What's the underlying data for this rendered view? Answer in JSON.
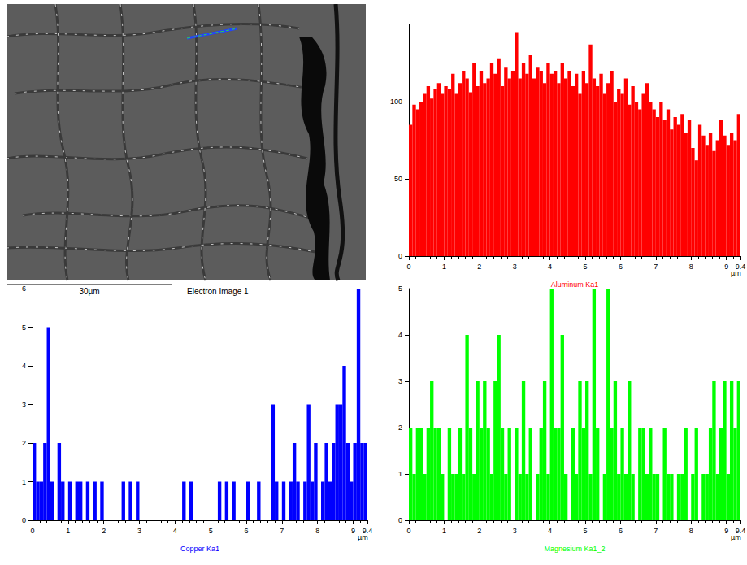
{
  "electron_image": {
    "label": "Electron Image 1",
    "scale_bar": "30µm"
  },
  "chart_data": [
    {
      "type": "bar",
      "title": "Aluminum Ka1",
      "xlabel": "µm",
      "color": "#ff0000",
      "grid": false,
      "xlim": [
        0,
        9.4
      ],
      "xticks": [
        0,
        1,
        2,
        3,
        4,
        5,
        6,
        7,
        8,
        9
      ],
      "ylim": [
        0,
        150
      ],
      "yticks": [
        0,
        50,
        100
      ],
      "x": [
        0.05,
        0.15,
        0.25,
        0.35,
        0.45,
        0.55,
        0.65,
        0.75,
        0.85,
        0.95,
        1.05,
        1.15,
        1.25,
        1.35,
        1.45,
        1.55,
        1.65,
        1.75,
        1.85,
        1.95,
        2.05,
        2.15,
        2.25,
        2.35,
        2.45,
        2.55,
        2.65,
        2.75,
        2.85,
        2.95,
        3.05,
        3.15,
        3.25,
        3.35,
        3.45,
        3.55,
        3.65,
        3.75,
        3.85,
        3.95,
        4.05,
        4.15,
        4.25,
        4.35,
        4.45,
        4.55,
        4.65,
        4.75,
        4.85,
        4.95,
        5.05,
        5.15,
        5.25,
        5.35,
        5.45,
        5.55,
        5.65,
        5.75,
        5.85,
        5.95,
        6.05,
        6.15,
        6.25,
        6.35,
        6.45,
        6.55,
        6.65,
        6.75,
        6.85,
        6.95,
        7.05,
        7.15,
        7.25,
        7.35,
        7.45,
        7.55,
        7.65,
        7.75,
        7.85,
        7.95,
        8.05,
        8.15,
        8.25,
        8.35,
        8.45,
        8.55,
        8.65,
        8.75,
        8.85,
        8.95,
        9.05,
        9.15,
        9.25,
        9.35
      ],
      "values": [
        85,
        98,
        95,
        100,
        105,
        110,
        102,
        108,
        112,
        105,
        110,
        108,
        118,
        105,
        112,
        120,
        115,
        106,
        125,
        110,
        120,
        112,
        115,
        125,
        118,
        128,
        110,
        122,
        115,
        120,
        145,
        115,
        125,
        118,
        130,
        115,
        122,
        120,
        112,
        125,
        118,
        120,
        112,
        125,
        115,
        120,
        110,
        118,
        105,
        120,
        112,
        137,
        115,
        110,
        118,
        105,
        112,
        120,
        100,
        108,
        105,
        115,
        98,
        110,
        100,
        95,
        105,
        112,
        100,
        95,
        90,
        100,
        88,
        95,
        82,
        90,
        85,
        92,
        80,
        88,
        70,
        62,
        85,
        78,
        72,
        80,
        68,
        75,
        88,
        78,
        72,
        80,
        75,
        92
      ]
    },
    {
      "type": "bar",
      "title": "Copper Ka1",
      "xlabel": "µm",
      "color": "#0000ff",
      "grid": false,
      "xlim": [
        0,
        9.4
      ],
      "xticks": [
        0,
        1,
        2,
        3,
        4,
        5,
        6,
        7,
        8,
        9
      ],
      "ylim": [
        0,
        6
      ],
      "yticks": [
        0,
        1,
        2,
        3,
        4,
        5,
        6
      ],
      "x": [
        0.05,
        0.15,
        0.25,
        0.35,
        0.45,
        0.55,
        0.65,
        0.75,
        0.85,
        0.95,
        1.05,
        1.15,
        1.25,
        1.35,
        1.45,
        1.55,
        1.65,
        1.75,
        1.85,
        1.95,
        2.05,
        2.15,
        2.25,
        2.35,
        2.45,
        2.55,
        2.65,
        2.75,
        2.85,
        2.95,
        3.05,
        3.15,
        3.25,
        3.35,
        3.45,
        3.55,
        3.65,
        3.75,
        3.85,
        3.95,
        4.05,
        4.15,
        4.25,
        4.35,
        4.45,
        4.55,
        4.65,
        4.75,
        4.85,
        4.95,
        5.05,
        5.15,
        5.25,
        5.35,
        5.45,
        5.55,
        5.65,
        5.75,
        5.85,
        5.95,
        6.05,
        6.15,
        6.25,
        6.35,
        6.45,
        6.55,
        6.65,
        6.75,
        6.85,
        6.95,
        7.05,
        7.15,
        7.25,
        7.35,
        7.45,
        7.55,
        7.65,
        7.75,
        7.85,
        7.95,
        8.05,
        8.15,
        8.25,
        8.35,
        8.45,
        8.55,
        8.65,
        8.75,
        8.85,
        8.95,
        9.05,
        9.15,
        9.25,
        9.35
      ],
      "values": [
        2,
        1,
        1,
        2,
        5,
        1,
        0,
        2,
        1,
        0,
        1,
        0,
        1,
        1,
        0,
        1,
        0,
        1,
        0,
        1,
        0,
        0,
        0,
        0,
        0,
        1,
        0,
        1,
        0,
        1,
        0,
        0,
        0,
        0,
        0,
        0,
        0,
        0,
        0,
        0,
        0,
        0,
        1,
        0,
        1,
        0,
        0,
        0,
        0,
        0,
        0,
        0,
        1,
        0,
        1,
        0,
        1,
        0,
        0,
        0,
        1,
        0,
        0,
        1,
        0,
        0,
        0,
        3,
        1,
        0,
        1,
        0,
        1,
        2,
        1,
        0,
        1,
        3,
        1,
        2,
        0,
        1,
        2,
        1,
        2,
        3,
        3,
        4,
        2,
        1,
        2,
        6,
        2,
        2
      ]
    },
    {
      "type": "bar",
      "title": "Magnesium Ka1_2",
      "xlabel": "µm",
      "color": "#00ff00",
      "grid": false,
      "xlim": [
        0,
        9.4
      ],
      "xticks": [
        0,
        1,
        2,
        3,
        4,
        5,
        6,
        7,
        8,
        9
      ],
      "ylim": [
        0,
        5
      ],
      "yticks": [
        0,
        1,
        2,
        3,
        4,
        5
      ],
      "x": [
        0.05,
        0.15,
        0.25,
        0.35,
        0.45,
        0.55,
        0.65,
        0.75,
        0.85,
        0.95,
        1.05,
        1.15,
        1.25,
        1.35,
        1.45,
        1.55,
        1.65,
        1.75,
        1.85,
        1.95,
        2.05,
        2.15,
        2.25,
        2.35,
        2.45,
        2.55,
        2.65,
        2.75,
        2.85,
        2.95,
        3.05,
        3.15,
        3.25,
        3.35,
        3.45,
        3.55,
        3.65,
        3.75,
        3.85,
        3.95,
        4.05,
        4.15,
        4.25,
        4.35,
        4.45,
        4.55,
        4.65,
        4.75,
        4.85,
        4.95,
        5.05,
        5.15,
        5.25,
        5.35,
        5.45,
        5.55,
        5.65,
        5.75,
        5.85,
        5.95,
        6.05,
        6.15,
        6.25,
        6.35,
        6.45,
        6.55,
        6.65,
        6.75,
        6.85,
        6.95,
        7.05,
        7.15,
        7.25,
        7.35,
        7.45,
        7.55,
        7.65,
        7.75,
        7.85,
        7.95,
        8.05,
        8.15,
        8.25,
        8.35,
        8.45,
        8.55,
        8.65,
        8.75,
        8.85,
        8.95,
        9.05,
        9.15,
        9.25,
        9.35
      ],
      "values": [
        2,
        1,
        2,
        2,
        1,
        2,
        3,
        2,
        2,
        1,
        0,
        2,
        1,
        1,
        2,
        1,
        4,
        2,
        1,
        3,
        2,
        3,
        2,
        1,
        3,
        4,
        2,
        1,
        2,
        0,
        2,
        1,
        3,
        1,
        2,
        0,
        1,
        2,
        3,
        1,
        5,
        2,
        2,
        4,
        1,
        0,
        2,
        1,
        3,
        2,
        3,
        1,
        5,
        2,
        0,
        1,
        5,
        2,
        3,
        1,
        2,
        1,
        3,
        1,
        0,
        2,
        2,
        1,
        2,
        1,
        1,
        0,
        2,
        1,
        1,
        0,
        1,
        1,
        2,
        0,
        1,
        2,
        0,
        1,
        1,
        2,
        3,
        1,
        2,
        3,
        1,
        3,
        2,
        3
      ]
    }
  ]
}
